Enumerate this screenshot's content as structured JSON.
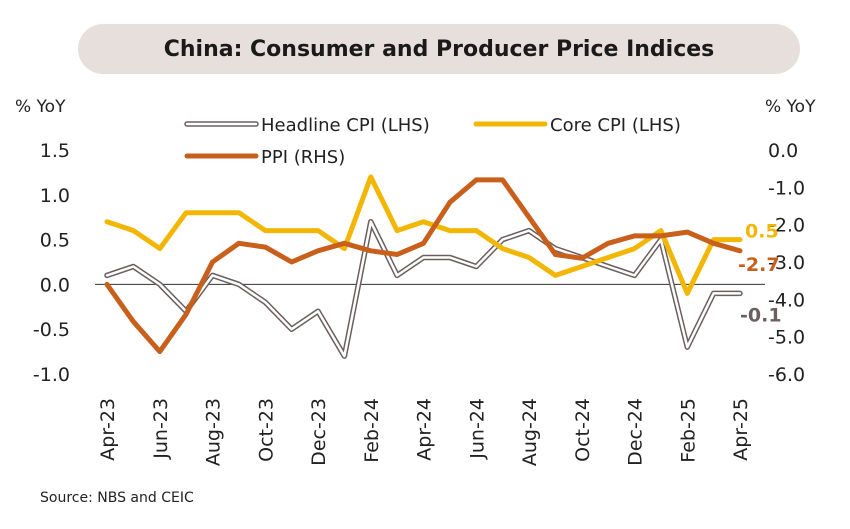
{
  "title": "China: Consumer and Producer Price Indices",
  "source": "Source: NBS and CEIC",
  "chart_data": {
    "type": "line",
    "title": "China: Consumer and Producer Price Indices",
    "left_axis": {
      "label": "% YoY",
      "ylim": [
        -1.0,
        1.5
      ],
      "ticks": [
        "1.5",
        "1.0",
        "0.5",
        "0.0",
        "-0.5",
        "-1.0"
      ]
    },
    "right_axis": {
      "label": "% YoY",
      "ylim": [
        -6.0,
        0.0
      ],
      "ticks": [
        "0.0",
        "-1.0",
        "-2.0",
        "-3.0",
        "-4.0",
        "-5.0",
        "-6.0"
      ]
    },
    "x": [
      "Apr-23",
      "May-23",
      "Jun-23",
      "Jul-23",
      "Aug-23",
      "Sep-23",
      "Oct-23",
      "Nov-23",
      "Dec-23",
      "Jan-24",
      "Feb-24",
      "Mar-24",
      "Apr-24",
      "May-24",
      "Jun-24",
      "Jul-24",
      "Aug-24",
      "Sep-24",
      "Oct-24",
      "Nov-24",
      "Dec-24",
      "Jan-25",
      "Feb-25",
      "Mar-25",
      "Apr-25"
    ],
    "x_tick_labels": [
      "Apr-23",
      "Jun-23",
      "Aug-23",
      "Oct-23",
      "Dec-23",
      "Feb-24",
      "Apr-24",
      "Jun-24",
      "Aug-24",
      "Oct-24",
      "Dec-24",
      "Feb-25",
      "Apr-25"
    ],
    "series": [
      {
        "name": "Headline CPI (LHS)",
        "axis": "left",
        "color": "#6b5f5f",
        "style": "hollow",
        "values": [
          0.1,
          0.2,
          0.0,
          -0.3,
          0.1,
          0.0,
          -0.2,
          -0.5,
          -0.3,
          -0.8,
          0.7,
          0.1,
          0.3,
          0.3,
          0.2,
          0.5,
          0.6,
          0.4,
          0.3,
          0.2,
          0.1,
          0.5,
          -0.7,
          -0.1,
          -0.1
        ],
        "end_label": "-0.1"
      },
      {
        "name": "Core CPI (LHS)",
        "axis": "left",
        "color": "#f2b705",
        "values": [
          0.7,
          0.6,
          0.4,
          0.8,
          0.8,
          0.8,
          0.6,
          0.6,
          0.6,
          0.4,
          1.2,
          0.6,
          0.7,
          0.6,
          0.6,
          0.4,
          0.3,
          0.1,
          0.2,
          0.3,
          0.4,
          0.6,
          -0.1,
          0.5,
          0.5
        ],
        "end_label": "0.5"
      },
      {
        "name": "PPI (RHS)",
        "axis": "right",
        "color": "#c8601c",
        "values": [
          -3.6,
          -4.6,
          -5.4,
          -4.4,
          -3.0,
          -2.5,
          -2.6,
          -3.0,
          -2.7,
          -2.5,
          -2.7,
          -2.8,
          -2.5,
          -1.4,
          -0.8,
          -0.8,
          -1.8,
          -2.8,
          -2.9,
          -2.5,
          -2.3,
          -2.3,
          -2.2,
          -2.5,
          -2.7
        ],
        "end_label": "-2.7"
      }
    ]
  }
}
